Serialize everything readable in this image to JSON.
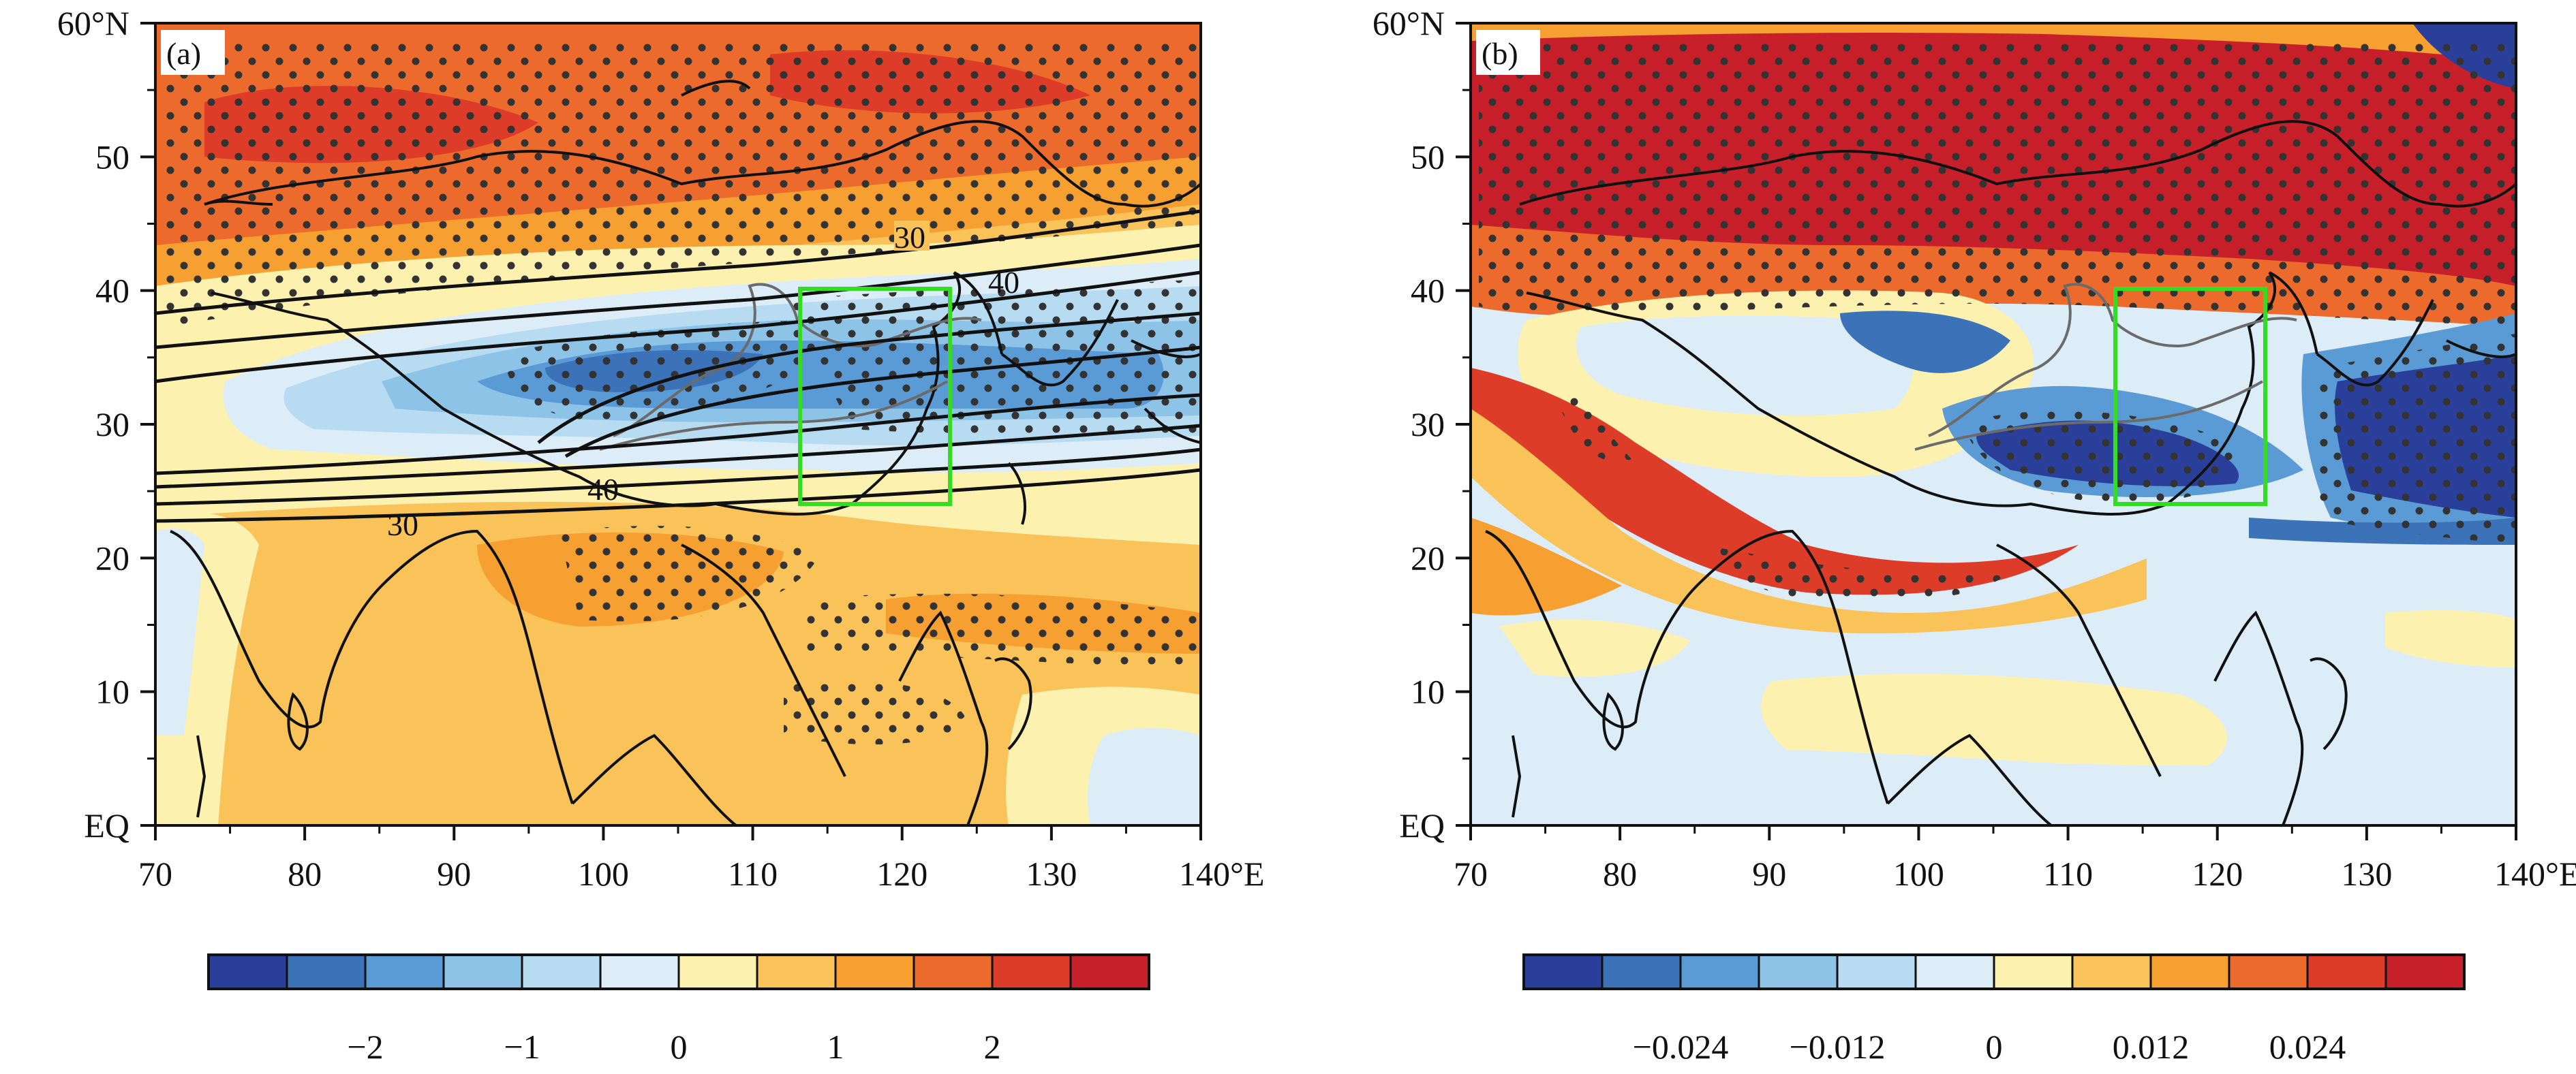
{
  "figure": {
    "panels": [
      {
        "id": "a",
        "tag": "(a)",
        "x_ticks": [
          "70",
          "80",
          "90",
          "100",
          "110",
          "120",
          "130",
          "140°E"
        ],
        "y_ticks": [
          "EQ",
          "10",
          "20",
          "30",
          "40",
          "50",
          "60°N"
        ],
        "contour_labels": [
          "30",
          "40",
          "40",
          "30"
        ],
        "colorbar": {
          "colors": [
            "#2a3f9a",
            "#3b72b8",
            "#5b9bd5",
            "#8ec3e8",
            "#b7dbf1",
            "#dcedf7",
            "#fdf1b0",
            "#f9c35a",
            "#f5a030",
            "#ec6a2c",
            "#dc3c28",
            "#c8202a"
          ],
          "labels": [
            "−2",
            "−1",
            "0",
            "1",
            "2"
          ]
        }
      },
      {
        "id": "b",
        "tag": "(b)",
        "x_ticks": [
          "70",
          "80",
          "90",
          "100",
          "110",
          "120",
          "130",
          "140°E"
        ],
        "y_ticks": [
          "EQ",
          "10",
          "20",
          "30",
          "40",
          "50",
          "60°N"
        ],
        "colorbar": {
          "colors": [
            "#2a3f9a",
            "#3b72b8",
            "#5b9bd5",
            "#8ec3e8",
            "#b7dbf1",
            "#dcedf7",
            "#fdf1b0",
            "#f9c35a",
            "#f5a030",
            "#ec6a2c",
            "#dc3c28",
            "#c8202a"
          ],
          "labels": [
            "−0.024",
            "−0.012",
            "0",
            "0.012",
            "0.024"
          ]
        }
      }
    ],
    "colors": {
      "box": "#33dd22",
      "stipple": "#333333",
      "coast": "#111111",
      "river": "#6b6b6b"
    }
  }
}
